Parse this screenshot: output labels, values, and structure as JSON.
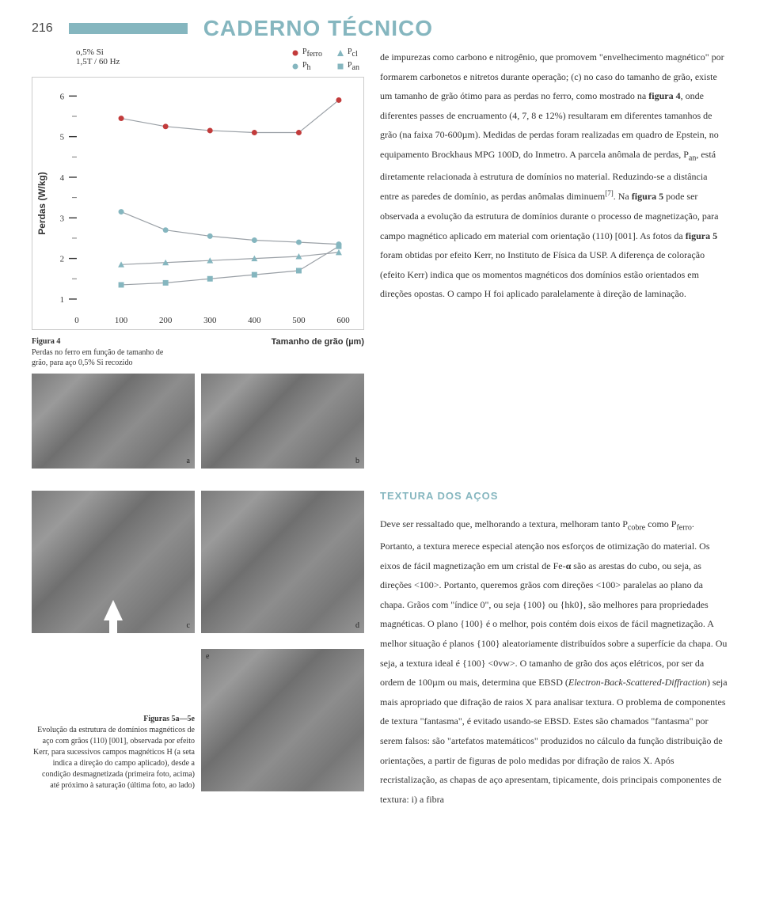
{
  "page_number": "216",
  "section_title": "CADERNO TÉCNICO",
  "accent_color": "#85b6bf",
  "title_color": "#85b6bf",
  "chart": {
    "type": "scatter-line",
    "sample_label_1": "o,5% Si",
    "sample_label_2": "1,5T / 60 Hz",
    "legend": {
      "pferro": "P",
      "pferro_sub": "ferro",
      "ph": "P",
      "ph_sub": "h",
      "pcl": "P",
      "pcl_sub": "cl",
      "pan": "P",
      "pan_sub": "an"
    },
    "markers": {
      "pferro": {
        "shape": "circle",
        "color": "#c23b3b"
      },
      "ph": {
        "shape": "circle",
        "color": "#85b6bf"
      },
      "pcl": {
        "shape": "triangle",
        "color": "#85b6bf"
      },
      "pan": {
        "shape": "square",
        "color": "#85b6bf"
      }
    },
    "y_label": "Perdas (W/kg)",
    "x_label": "Tamanho de grão (µm)",
    "xlim": [
      0,
      620
    ],
    "ylim": [
      0.8,
      6.3
    ],
    "xticks": [
      0,
      100,
      200,
      300,
      400,
      500,
      600
    ],
    "yticks": [
      1,
      2,
      3,
      4,
      5,
      6
    ],
    "series": {
      "pferro": [
        [
          100,
          5.45
        ],
        [
          200,
          5.25
        ],
        [
          300,
          5.15
        ],
        [
          400,
          5.1
        ],
        [
          500,
          5.1
        ],
        [
          590,
          5.9
        ]
      ],
      "ph": [
        [
          100,
          3.15
        ],
        [
          200,
          2.7
        ],
        [
          300,
          2.55
        ],
        [
          400,
          2.45
        ],
        [
          500,
          2.4
        ],
        [
          590,
          2.35
        ]
      ],
      "pcl": [
        [
          100,
          1.85
        ],
        [
          200,
          1.9
        ],
        [
          300,
          1.95
        ],
        [
          400,
          2.0
        ],
        [
          500,
          2.05
        ],
        [
          590,
          2.15
        ]
      ],
      "pan": [
        [
          100,
          1.35
        ],
        [
          200,
          1.4
        ],
        [
          300,
          1.5
        ],
        [
          400,
          1.6
        ],
        [
          500,
          1.7
        ],
        [
          590,
          2.3
        ]
      ]
    },
    "line_color": "#9aa0a6",
    "line_width": 1.2,
    "background": "#ffffff"
  },
  "fig4_caption": {
    "title": "Figura 4",
    "lines": "Perdas no ferro em função de tamanho de grão, para aço 0,5% Si recozido"
  },
  "photo_tags": {
    "a": "a",
    "b": "b",
    "c": "c",
    "d": "d",
    "e": "e"
  },
  "fig5_caption": {
    "title": "Figuras 5a—5e",
    "body": "Evolução da estrutura de domínios magnéticos de aço com grãos (110) [001], observada por efeito Kerr, para sucessivos campos magnéticos H (a seta indica a direção do campo aplicado), desde a condição desmagnetizada (primeira foto, acima) até próximo à saturação (última foto, ao lado)"
  },
  "body1": {
    "p": "de impurezas como carbono e nitrogênio, que promovem \"envelhecimento magnético\" por formarem carbonetos e nitretos durante operação; (c) no caso do tamanho de grão, existe um tamanho de grão ótimo para as perdas no ferro, como mostrado na <b>figura 4</b>, onde diferentes passes de encruamento (4, 7, 8 e 12%) resultaram em diferentes tamanhos de grão (na faixa 70-600µm). Medidas de perdas foram realizadas em quadro de Epstein, no equipamento Brockhaus MPG 100D, do Inmetro. A parcela anômala de perdas, P<span class='sub'>an</span>, está diretamente relacionada à estrutura de domínios no material. Reduzindo-se a distância entre as paredes de domínio, as perdas anômalas diminuem<span class='sup'>[7]</span>. Na <b>figura 5</b> pode ser observada a evolução da estrutura de domínios durante o processo de magnetização, para campo magnético aplicado em material com orientação (110) [001]. As fotos da <b>figura 5</b> foram obtidas por efeito Kerr, no Instituto de Física da USP. A diferença de coloração (efeito Kerr) indica que os momentos magnéticos dos domínios estão orientados em direções opostas. O campo H foi aplicado paralelamente à direção de laminação."
  },
  "sub_title": "TEXTURA DOS AÇOS",
  "sub_title_color": "#85b6bf",
  "body2": {
    "p": "Deve ser ressaltado que, melhorando a textura, melhoram tanto P<span class='sub'>cobre</span> como P<span class='sub'>ferro</span>. Portanto, a textura merece especial atenção nos esforços de otimização do material. Os eixos de fácil magnetização em um cristal de Fe-<b>α</b> são as arestas do cubo, ou seja, as direções &lt;100&gt;. Portanto, queremos grãos com direções &lt;100&gt; paralelas ao plano da chapa. Grãos com \"índice 0\", ou seja {100} ou {hk0}, são melhores para propriedades magnéticas. O plano {100} é o melhor, pois contém dois eixos de fácil magnetização. A melhor situação é planos {100} aleatoriamente distribuídos sobre a superfície da chapa. Ou seja, a textura ideal é {100} &lt;0vw&gt;. O tamanho de grão dos aços elétricos, por ser da ordem de 100µm ou mais, determina que EBSD (<i>Electron-Back-Scattered-Diffraction</i>) seja mais apropriado que difração de raios X para analisar textura. O problema de componentes de textura \"fantasma\", é evitado usando-se EBSD. Estes são chamados \"fantasma\" por serem falsos: são \"artefatos matemáticos\" produzidos no cálculo da função distribuição de orientações, a partir de figuras de polo medidas por difração de raios X. Após recristalização, as chapas de aço apresentam, tipicamente, dois principais componentes de textura: i) a fibra"
  }
}
